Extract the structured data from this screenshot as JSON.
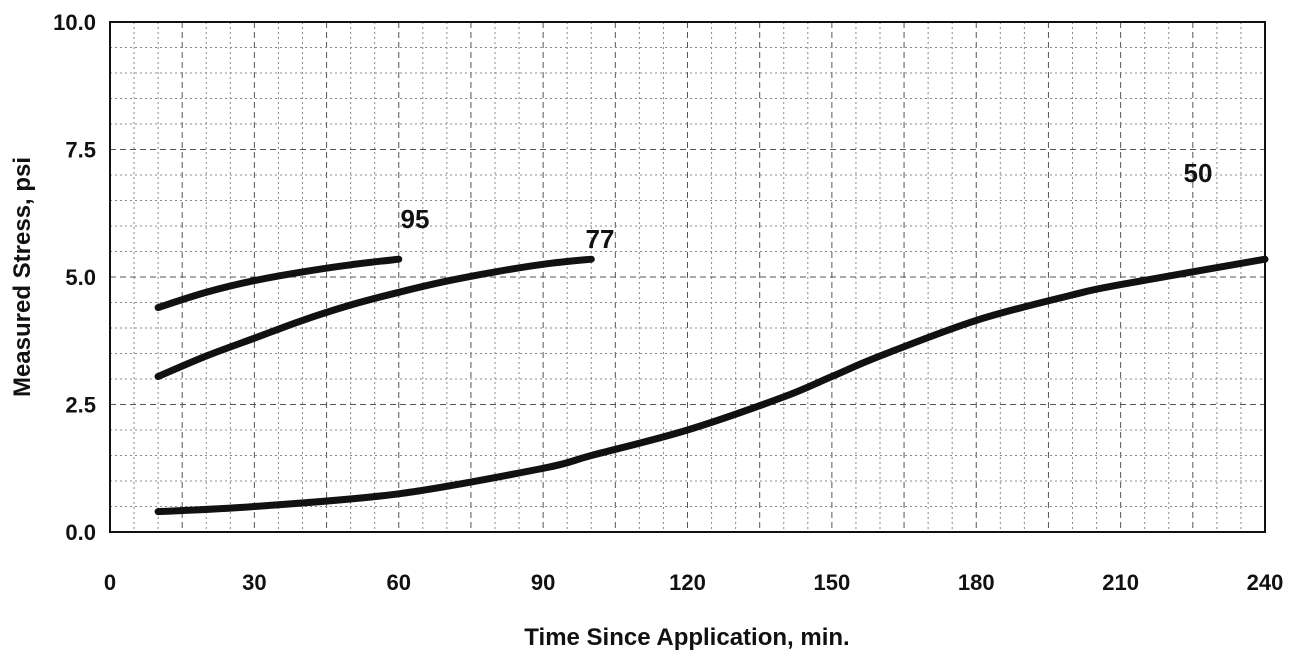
{
  "chart_data": {
    "type": "line",
    "xlabel": "Time Since Application, min.",
    "ylabel": "Measured Stress, psi",
    "xlim": [
      0,
      240
    ],
    "ylim": [
      0,
      10
    ],
    "xticks": [
      0,
      30,
      60,
      90,
      120,
      150,
      180,
      210,
      240
    ],
    "yticks": [
      "0.0",
      "2.5",
      "5.0",
      "7.5",
      "10.0"
    ],
    "grid": true,
    "series": [
      {
        "name": "95",
        "x": [
          10,
          20,
          30,
          40,
          50,
          60
        ],
        "y": [
          4.4,
          4.7,
          4.93,
          5.1,
          5.24,
          5.35
        ]
      },
      {
        "name": "77",
        "x": [
          10,
          20,
          30,
          40,
          50,
          60,
          70,
          80,
          90,
          100
        ],
        "y": [
          3.05,
          3.45,
          3.8,
          4.15,
          4.45,
          4.7,
          4.92,
          5.1,
          5.25,
          5.35
        ]
      },
      {
        "name": "50",
        "x": [
          10,
          30,
          60,
          90,
          100,
          120,
          140,
          150,
          160,
          180,
          200,
          210,
          240
        ],
        "y": [
          0.4,
          0.5,
          0.75,
          1.25,
          1.5,
          2.0,
          2.65,
          3.05,
          3.45,
          4.15,
          4.65,
          4.85,
          5.35
        ]
      }
    ]
  }
}
